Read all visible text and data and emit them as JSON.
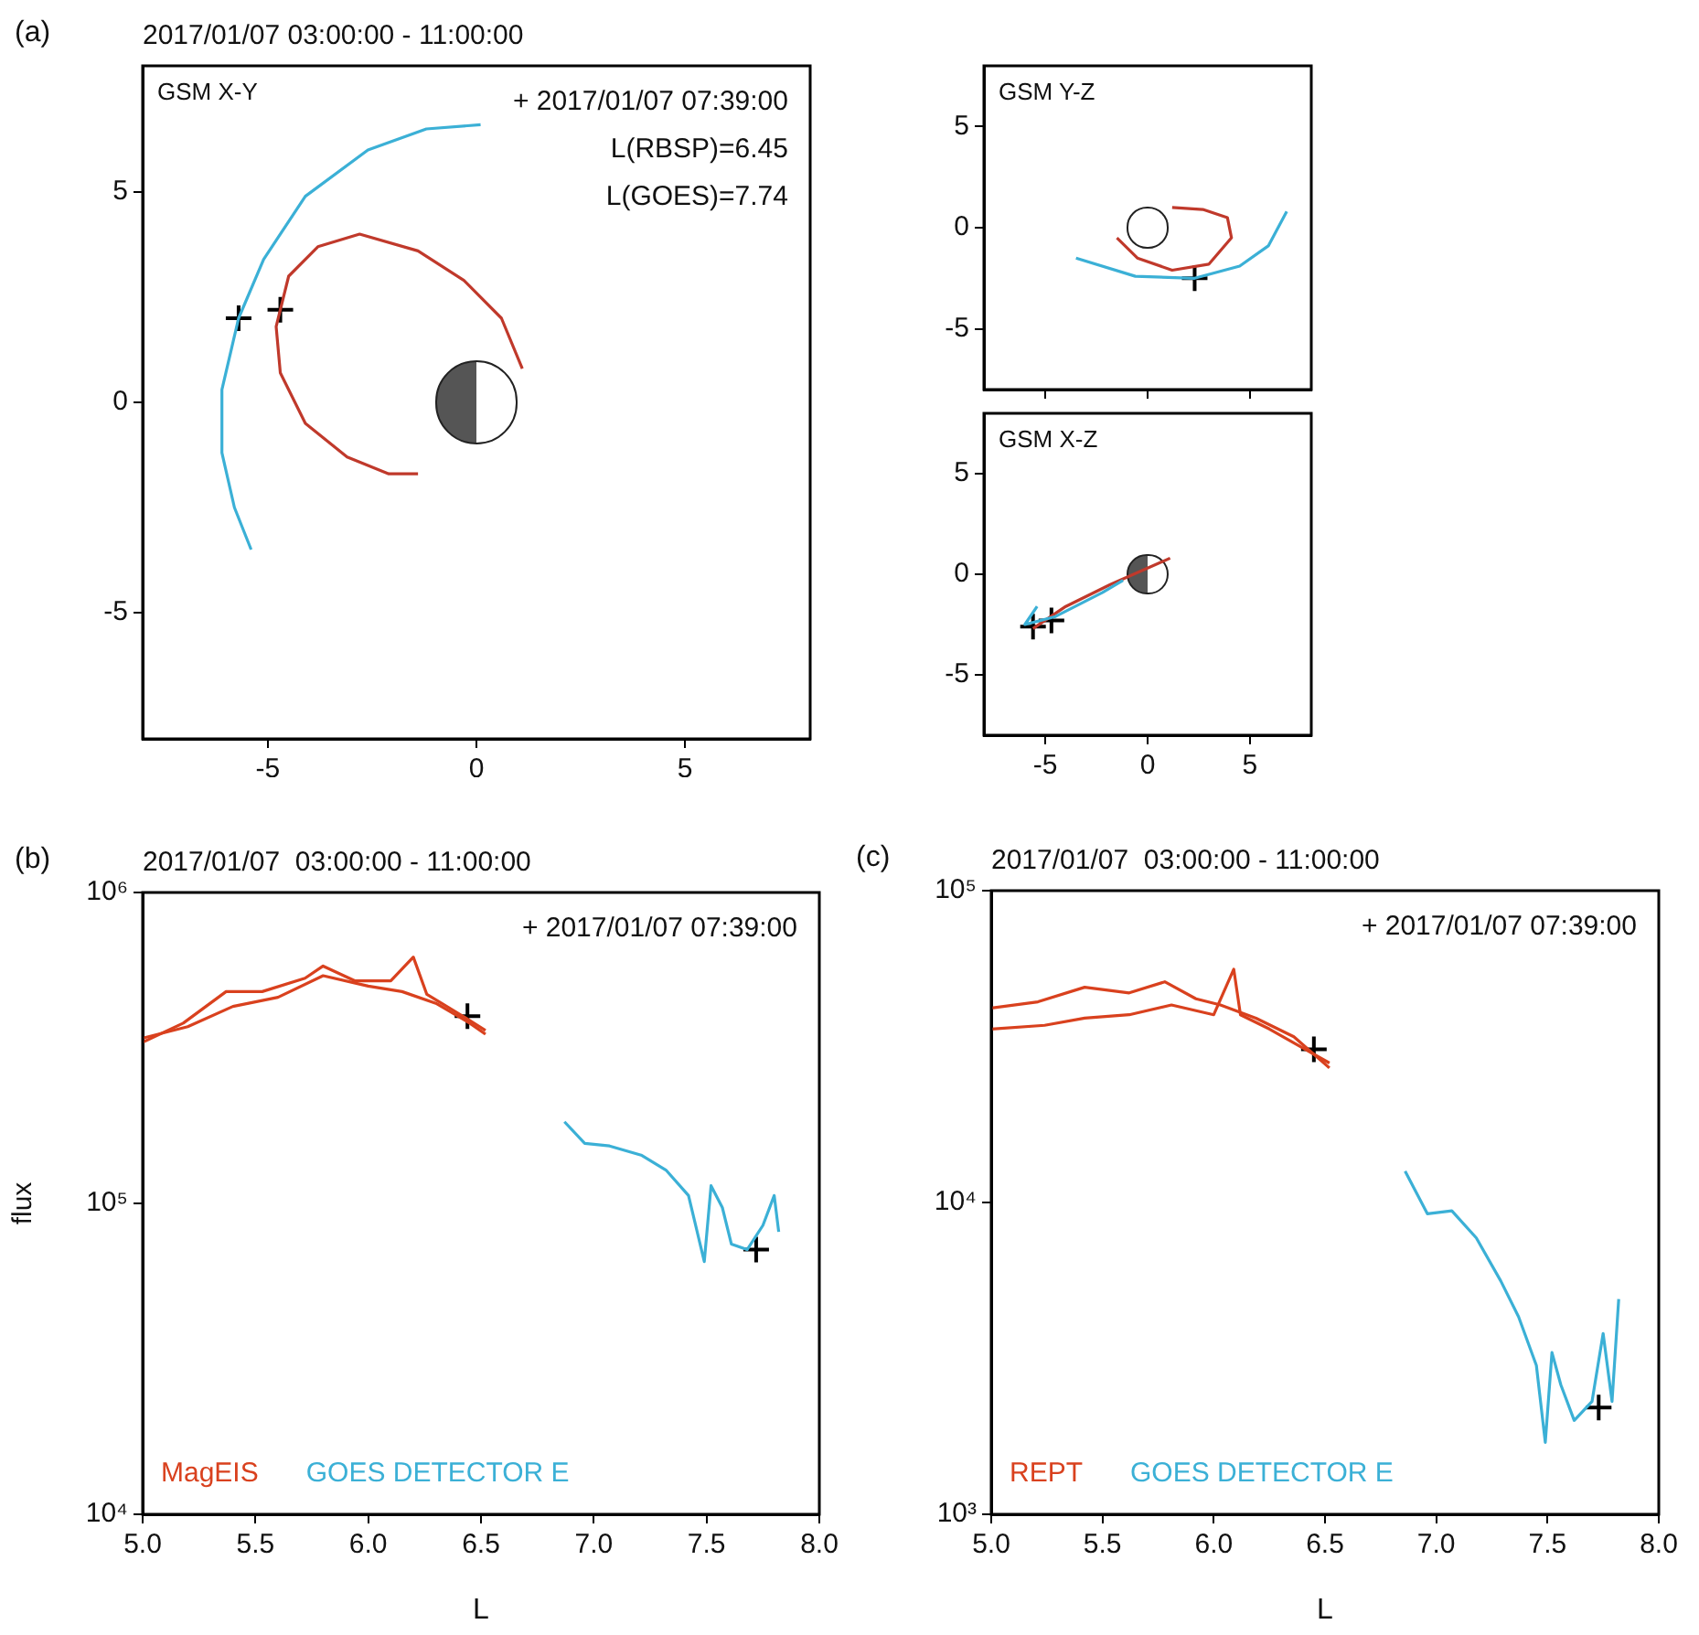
{
  "chart_data": [
    {
      "type": "line",
      "title": "2017/01/07 03:00:00 - 11:00:00",
      "annotations": [
        "(a)",
        "GSM X-Y",
        "+ 2017/01/07 07:39:00",
        "L(RBSP)=6.45",
        "L(GOES)=7.74"
      ],
      "xlim": [
        -8,
        8
      ],
      "xticks": [
        -5,
        0,
        5
      ],
      "ylim": [
        -8,
        8
      ],
      "yticks": [
        -5,
        0,
        5
      ],
      "grid": false,
      "marker": "none",
      "series": [
        {
          "color": "#3bb0d6",
          "x": [
            0.1,
            -1.2,
            -2.6,
            -4.1,
            -5.1,
            -5.7,
            -6.1,
            -6.1,
            -5.8,
            -5.4
          ],
          "values": [
            6.6,
            6.5,
            6.0,
            4.9,
            3.4,
            2.0,
            0.3,
            -1.2,
            -2.5,
            -3.5
          ]
        },
        {
          "color": "#c0392b",
          "x": [
            1.1,
            0.6,
            -0.3,
            -1.4,
            -2.8,
            -3.8,
            -4.5,
            -4.8,
            -4.7,
            -4.1,
            -3.1,
            -2.1,
            -1.4
          ],
          "values": [
            0.8,
            2.0,
            2.9,
            3.6,
            4.0,
            3.7,
            3.0,
            1.8,
            0.7,
            -0.5,
            -1.3,
            -1.7,
            -1.7
          ]
        },
        {
          "type": "scatter",
          "marker": "cross",
          "color": "#000000",
          "x": [
            -5.7,
            -4.7
          ],
          "values": [
            2.0,
            2.2
          ]
        }
      ]
    },
    {
      "type": "line",
      "annotations": [
        "GSM Y-Z"
      ],
      "xlim": [
        -8,
        8
      ],
      "xticks": [
        -5,
        0,
        5
      ],
      "ylim": [
        -8,
        8
      ],
      "yticks": [
        -5,
        0,
        5
      ],
      "tick_labels": "y",
      "grid": false,
      "marker": "none",
      "series": [
        {
          "color": "#3bb0d6",
          "x": [
            -3.5,
            -0.6,
            2.3,
            4.5,
            5.9,
            6.8
          ],
          "values": [
            -1.5,
            -2.4,
            -2.5,
            -1.9,
            -0.9,
            0.8
          ]
        },
        {
          "color": "#c0392b",
          "x": [
            -1.5,
            -0.5,
            1.2,
            3.0,
            4.1,
            3.9,
            2.7,
            1.2
          ],
          "values": [
            -0.5,
            -1.5,
            -2.1,
            -1.8,
            -0.5,
            0.5,
            0.9,
            1.0
          ]
        },
        {
          "type": "scatter",
          "marker": "cross",
          "color": "#000000",
          "x": [
            2.3
          ],
          "values": [
            -2.5
          ]
        }
      ]
    },
    {
      "type": "line",
      "annotations": [
        "GSM X-Z"
      ],
      "xlim": [
        -8,
        8
      ],
      "xticks": [
        -5,
        0,
        5
      ],
      "ylim": [
        -8,
        8
      ],
      "yticks": [
        -5,
        0,
        5
      ],
      "grid": false,
      "marker": "none",
      "series": [
        {
          "color": "#3bb0d6",
          "x": [
            -5.4,
            -6.0,
            -4.5,
            -2.2,
            -1.2
          ],
          "values": [
            -1.6,
            -2.5,
            -2.1,
            -0.9,
            -0.3
          ]
        },
        {
          "color": "#c0392b",
          "x": [
            -5.6,
            -4.0,
            -1.8,
            1.1
          ],
          "values": [
            -2.7,
            -1.6,
            -0.5,
            0.8
          ]
        },
        {
          "type": "scatter",
          "marker": "cross",
          "color": "#000000",
          "x": [
            -5.6,
            -4.7
          ],
          "values": [
            -2.6,
            -2.3
          ]
        }
      ]
    },
    {
      "type": "line",
      "title": "2017/01/07  03:00:00 - 11:00:00",
      "annotations": [
        "(b)",
        "+ 2017/01/07 07:39:00"
      ],
      "xlabel": "L",
      "ylabel": "flux",
      "log": "y",
      "xlim": [
        5.0,
        8.0
      ],
      "xticks": [
        {
          "value": 5,
          "label": "5.0"
        },
        5.5,
        {
          "value": 6,
          "label": "6.0"
        },
        6.5,
        {
          "value": 7,
          "label": "7.0"
        },
        7.5,
        {
          "value": 8,
          "label": "8.0"
        }
      ],
      "ylim": [
        10000,
        1000000
      ],
      "yticks": [
        {
          "value": 10000,
          "label": "10⁴"
        },
        {
          "value": 100000,
          "label": "10⁵"
        },
        {
          "value": 1000000,
          "label": "10⁶"
        }
      ],
      "grid": false,
      "legend": "bottom left",
      "marker": "none",
      "series": [
        {
          "name": "MagEIS",
          "color": "#d9411e",
          "x": [
            5.0,
            5.18,
            5.37,
            5.53,
            5.72,
            5.8,
            5.94,
            6.1,
            6.2,
            6.26,
            6.42,
            6.52
          ],
          "values": [
            330000,
            380000,
            480000,
            480000,
            530000,
            580000,
            520000,
            520000,
            620000,
            470000,
            400000,
            360000
          ]
        },
        {
          "color": "#d9411e",
          "x": [
            5.0,
            5.2,
            5.4,
            5.6,
            5.8,
            6.0,
            6.15,
            6.3,
            6.45,
            6.52
          ],
          "values": [
            340000,
            370000,
            430000,
            460000,
            540000,
            500000,
            480000,
            440000,
            380000,
            350000
          ]
        },
        {
          "name": "GOES DETECTOR E",
          "color": "#3bb0d6",
          "x": [
            6.87,
            6.96,
            7.07,
            7.21,
            7.32,
            7.42,
            7.49,
            7.52,
            7.57,
            7.61,
            7.68,
            7.75,
            7.8,
            7.82
          ],
          "values": [
            183000,
            156000,
            153000,
            143000,
            128000,
            106000,
            65000,
            114000,
            97000,
            74000,
            71000,
            85000,
            106000,
            81000
          ]
        },
        {
          "type": "scatter",
          "marker": "cross",
          "color": "#000000",
          "x": [
            6.44,
            7.72
          ],
          "values": [
            400000,
            71000
          ]
        }
      ]
    },
    {
      "type": "line",
      "title": "2017/01/07  03:00:00 - 11:00:00",
      "annotations": [
        "(c)",
        "+ 2017/01/07 07:39:00"
      ],
      "xlabel": "L",
      "log": "y",
      "xlim": [
        5.0,
        8.0
      ],
      "xticks": [
        {
          "value": 5,
          "label": "5.0"
        },
        5.5,
        {
          "value": 6,
          "label": "6.0"
        },
        6.5,
        {
          "value": 7,
          "label": "7.0"
        },
        7.5,
        {
          "value": 8,
          "label": "8.0"
        }
      ],
      "ylim": [
        1000,
        100000
      ],
      "yticks": [
        {
          "value": 1000,
          "label": "10³"
        },
        {
          "value": 10000,
          "label": "10⁴"
        },
        {
          "value": 100000,
          "label": "10⁵"
        }
      ],
      "grid": false,
      "legend": "bottom left",
      "marker": "none",
      "series": [
        {
          "name": "REPT",
          "color": "#d9411e",
          "x": [
            5.0,
            5.21,
            5.42,
            5.62,
            5.78,
            5.92,
            6.03,
            6.19,
            6.36,
            6.52
          ],
          "values": [
            42000,
            44000,
            49000,
            47000,
            51000,
            45000,
            43000,
            39000,
            34000,
            27000
          ]
        },
        {
          "color": "#d9411e",
          "x": [
            5.0,
            5.24,
            5.42,
            5.62,
            5.81,
            6.0,
            6.09,
            6.12,
            6.25,
            6.41,
            6.52
          ],
          "values": [
            36000,
            37000,
            39000,
            40000,
            43000,
            40000,
            56000,
            40000,
            36000,
            31000,
            28000
          ]
        },
        {
          "name": "GOES DETECTOR E",
          "color": "#3bb0d6",
          "x": [
            6.86,
            6.96,
            7.07,
            7.18,
            7.29,
            7.37,
            7.45,
            7.49,
            7.52,
            7.56,
            7.62,
            7.7,
            7.75,
            7.79,
            7.82
          ],
          "values": [
            12600,
            9200,
            9400,
            7700,
            5600,
            4300,
            3000,
            1700,
            3300,
            2600,
            2000,
            2300,
            3800,
            2300,
            4900
          ]
        },
        {
          "type": "scatter",
          "marker": "cross",
          "color": "#000000",
          "x": [
            6.45,
            7.73
          ],
          "values": [
            31000,
            2200
          ]
        }
      ]
    }
  ]
}
